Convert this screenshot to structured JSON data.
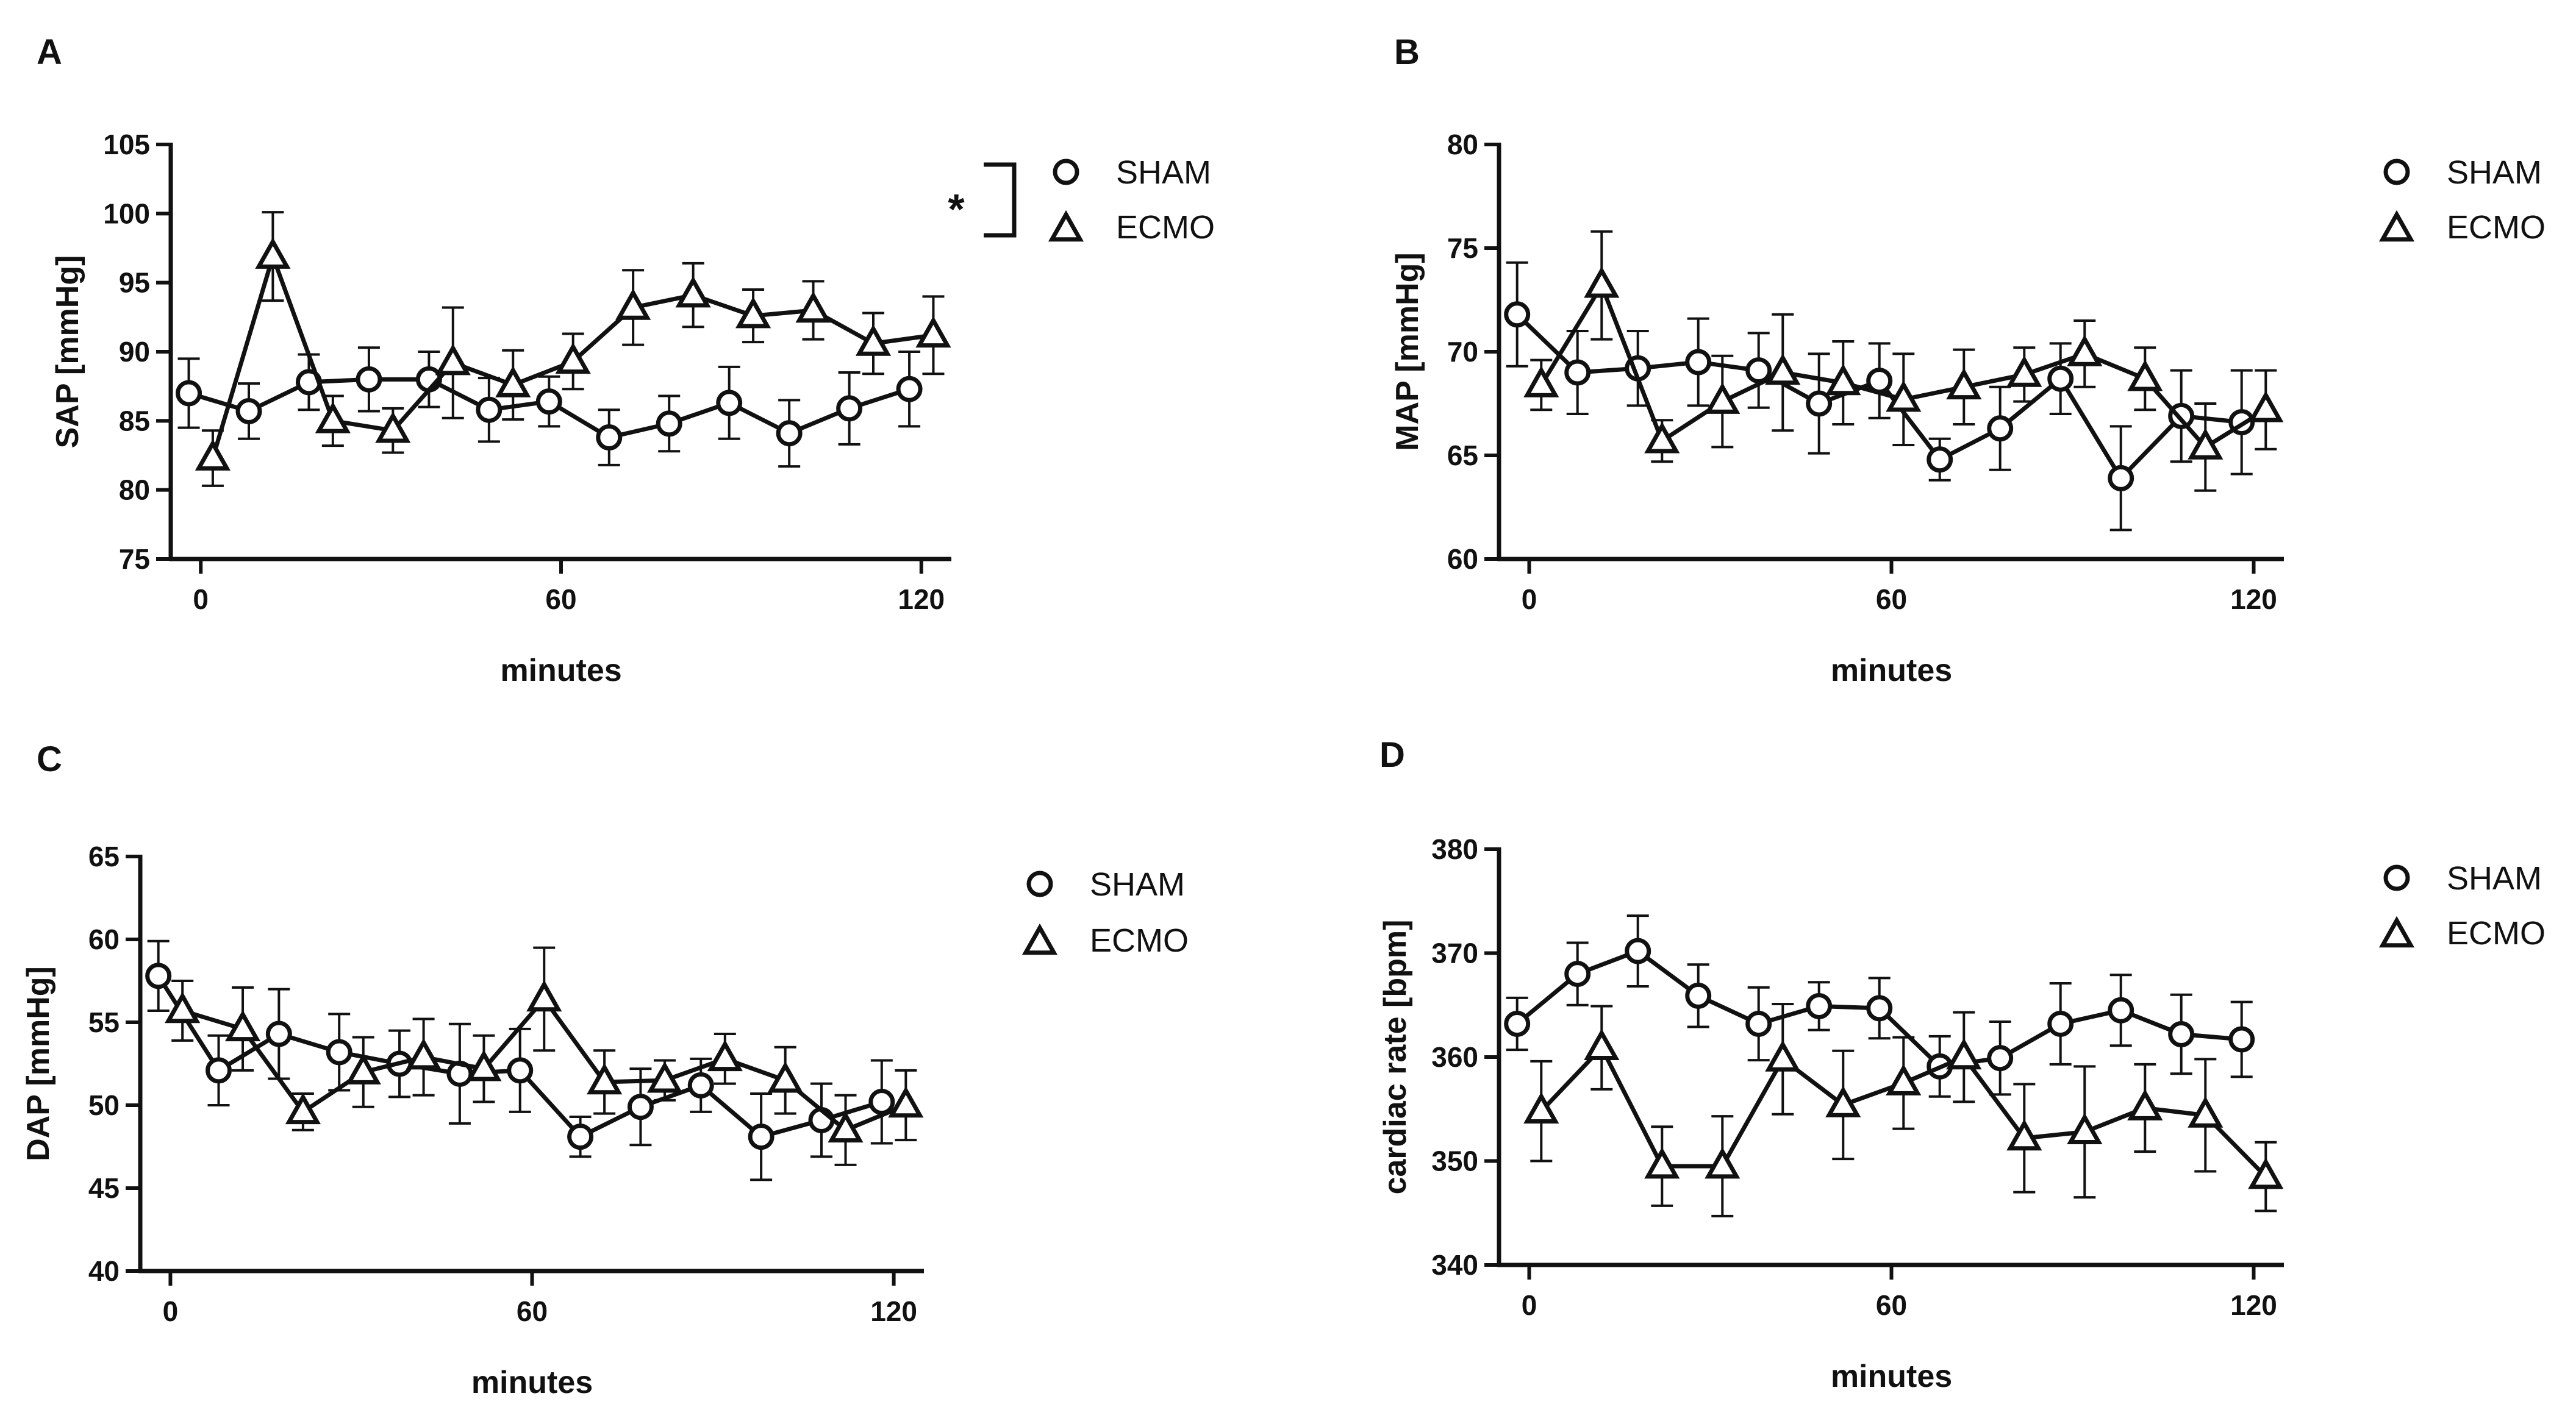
{
  "chart_data": [
    {
      "panel": "A",
      "type": "line",
      "title": "",
      "xlabel": "minutes",
      "ylabel": "SAP [mmHg]",
      "xlim": [
        -5,
        125
      ],
      "ylim": [
        75,
        105
      ],
      "xticks": [
        0,
        60,
        120
      ],
      "yticks": [
        75,
        80,
        85,
        90,
        95,
        100,
        105
      ],
      "legend": [
        "SHAM",
        "ECMO"
      ],
      "significance": "*",
      "series": [
        {
          "name": "SHAM",
          "marker": "circle",
          "x": [
            -2,
            8,
            18,
            28,
            38,
            48,
            58,
            68,
            78,
            88,
            98,
            108,
            118
          ],
          "y": [
            87.0,
            85.7,
            87.8,
            88.0,
            88.0,
            85.8,
            86.4,
            83.8,
            84.8,
            86.3,
            84.1,
            85.9,
            87.3
          ],
          "err": [
            2.5,
            2.0,
            2.0,
            2.3,
            2.0,
            2.3,
            1.8,
            2.0,
            2.0,
            2.6,
            2.4,
            2.6,
            2.7
          ]
        },
        {
          "name": "ECMO",
          "marker": "triangle",
          "x": [
            2,
            12,
            22,
            32,
            42,
            52,
            62,
            72,
            82,
            92,
            102,
            112,
            122
          ],
          "y": [
            82.3,
            96.9,
            85.0,
            84.3,
            89.2,
            87.6,
            89.3,
            93.2,
            94.1,
            92.6,
            93.0,
            90.6,
            91.2
          ],
          "err": [
            2.0,
            3.2,
            1.8,
            1.6,
            4.0,
            2.5,
            2.0,
            2.7,
            2.3,
            1.9,
            2.1,
            2.2,
            2.8
          ]
        }
      ]
    },
    {
      "panel": "B",
      "type": "line",
      "title": "",
      "xlabel": "minutes",
      "ylabel": "MAP [mmHg]",
      "xlim": [
        -5,
        125
      ],
      "ylim": [
        60,
        80
      ],
      "xticks": [
        0,
        60,
        120
      ],
      "yticks": [
        60,
        65,
        70,
        75,
        80
      ],
      "legend": [
        "SHAM",
        "ECMO"
      ],
      "significance": "",
      "series": [
        {
          "name": "SHAM",
          "marker": "circle",
          "x": [
            -2,
            8,
            18,
            28,
            38,
            48,
            58,
            68,
            78,
            88,
            98,
            108,
            118
          ],
          "y": [
            71.8,
            69.0,
            69.2,
            69.5,
            69.1,
            67.5,
            68.6,
            64.8,
            66.3,
            68.7,
            63.9,
            66.9,
            66.6
          ],
          "err": [
            2.5,
            2.0,
            1.8,
            2.1,
            1.8,
            2.4,
            1.8,
            1.0,
            2.0,
            1.7,
            2.5,
            2.2,
            2.5
          ]
        },
        {
          "name": "ECMO",
          "marker": "triangle",
          "x": [
            2,
            12,
            22,
            32,
            42,
            52,
            62,
            72,
            82,
            92,
            102,
            112,
            122
          ],
          "y": [
            68.4,
            73.2,
            65.7,
            67.6,
            69.0,
            68.5,
            67.7,
            68.3,
            68.9,
            69.9,
            68.7,
            65.4,
            67.2
          ],
          "err": [
            1.2,
            2.6,
            1.0,
            2.2,
            2.8,
            2.0,
            2.2,
            1.8,
            1.3,
            1.6,
            1.5,
            2.1,
            1.9
          ]
        }
      ]
    },
    {
      "panel": "C",
      "type": "line",
      "title": "",
      "xlabel": "minutes",
      "ylabel": "DAP [mmHg]",
      "xlim": [
        -5,
        125
      ],
      "ylim": [
        40,
        65
      ],
      "xticks": [
        0,
        60,
        120
      ],
      "yticks": [
        40,
        45,
        50,
        55,
        60,
        65
      ],
      "legend": [
        "SHAM",
        "ECMO"
      ],
      "significance": "",
      "series": [
        {
          "name": "SHAM",
          "marker": "circle",
          "x": [
            -2,
            8,
            18,
            28,
            38,
            48,
            58,
            68,
            78,
            88,
            98,
            108,
            118
          ],
          "y": [
            57.8,
            52.1,
            54.3,
            53.2,
            52.5,
            51.9,
            52.1,
            48.1,
            49.9,
            51.2,
            48.1,
            49.1,
            50.2
          ],
          "err": [
            2.1,
            2.1,
            2.7,
            2.3,
            2.0,
            3.0,
            2.5,
            1.2,
            2.3,
            1.6,
            2.6,
            2.2,
            2.5
          ]
        },
        {
          "name": "ECMO",
          "marker": "triangle",
          "x": [
            2,
            12,
            22,
            32,
            42,
            52,
            62,
            72,
            82,
            92,
            102,
            112,
            122
          ],
          "y": [
            55.7,
            54.6,
            49.6,
            52.0,
            52.9,
            52.2,
            56.4,
            51.4,
            51.5,
            52.8,
            51.5,
            48.5,
            50.0
          ],
          "err": [
            1.8,
            2.5,
            1.1,
            2.1,
            2.3,
            2.0,
            3.1,
            1.9,
            1.2,
            1.5,
            2.0,
            2.1,
            2.1
          ]
        }
      ]
    },
    {
      "panel": "D",
      "type": "line",
      "title": "",
      "xlabel": "minutes",
      "ylabel": "cardiac rate [bpm]",
      "xlim": [
        -5,
        125
      ],
      "ylim": [
        340,
        380
      ],
      "xticks": [
        0,
        60,
        120
      ],
      "yticks": [
        340,
        350,
        360,
        370,
        380
      ],
      "legend": [
        "SHAM",
        "ECMO"
      ],
      "significance": "",
      "series": [
        {
          "name": "SHAM",
          "marker": "circle",
          "x": [
            -2,
            8,
            18,
            28,
            38,
            48,
            58,
            68,
            78,
            88,
            98,
            108,
            118
          ],
          "y": [
            363.2,
            368.0,
            370.2,
            365.9,
            363.2,
            364.9,
            364.7,
            359.1,
            359.9,
            363.2,
            364.5,
            362.2,
            361.7
          ],
          "err": [
            2.5,
            3.0,
            3.4,
            3.0,
            3.5,
            2.3,
            2.9,
            2.9,
            3.5,
            3.9,
            3.4,
            3.8,
            3.6
          ]
        },
        {
          "name": "ECMO",
          "marker": "triangle",
          "x": [
            2,
            12,
            22,
            32,
            42,
            52,
            62,
            72,
            82,
            92,
            102,
            112,
            122
          ],
          "y": [
            354.8,
            360.9,
            349.5,
            349.5,
            359.8,
            355.4,
            357.5,
            360.0,
            352.2,
            352.8,
            355.1,
            354.4,
            348.5
          ],
          "err": [
            4.8,
            4.0,
            3.8,
            4.8,
            5.3,
            5.2,
            4.4,
            4.3,
            5.2,
            6.3,
            4.2,
            5.4,
            3.3
          ]
        }
      ]
    }
  ]
}
